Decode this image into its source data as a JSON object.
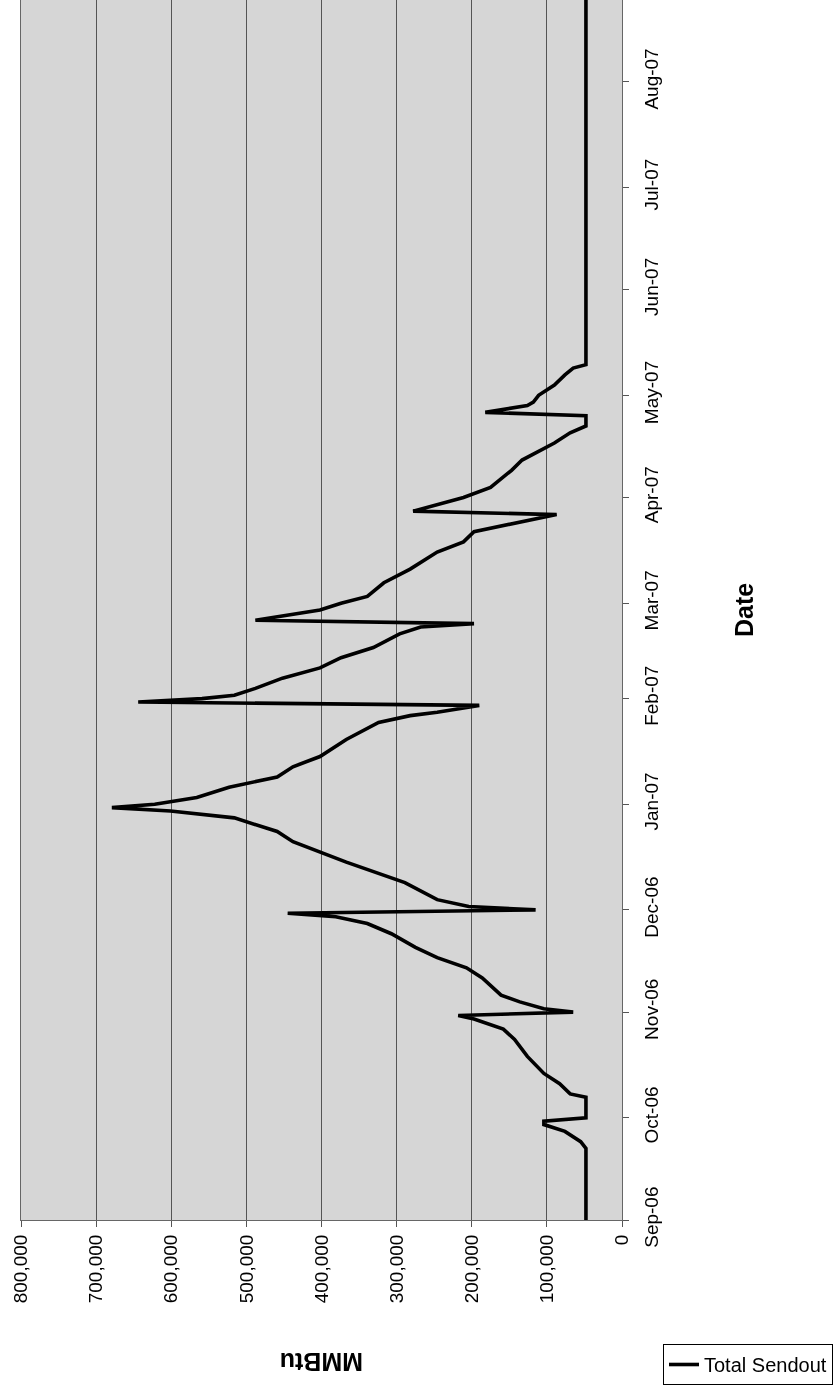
{
  "chart_data": {
    "type": "line",
    "orientation": "horizontal",
    "xlabel": "MMBtu",
    "ylabel": "Date",
    "legend": "bottom right",
    "grid": "x",
    "marker": "none",
    "line_style": "solid",
    "ylim": [
      "2006-09-01",
      "2007-08-25"
    ],
    "yticks": [
      {
        "value": "2006-09-01",
        "label": "Sep-06"
      },
      {
        "value": "2006-10-01",
        "label": "Oct-06"
      },
      {
        "value": "2006-11-01",
        "label": "Nov-06"
      },
      {
        "value": "2006-12-01",
        "label": "Dec-06"
      },
      {
        "value": "2007-01-01",
        "label": "Jan-07"
      },
      {
        "value": "2007-02-01",
        "label": "Feb-07"
      },
      {
        "value": "2007-03-01",
        "label": "Mar-07"
      },
      {
        "value": "2007-04-01",
        "label": "Apr-07"
      },
      {
        "value": "2007-05-01",
        "label": "May-07"
      },
      {
        "value": "2007-06-01",
        "label": "Jun-07"
      },
      {
        "value": "2007-07-01",
        "label": "Jul-07"
      },
      {
        "value": "2007-08-01",
        "label": "Aug-07"
      }
    ],
    "xlim": [
      800000,
      0
    ],
    "xticks": [
      0,
      {
        "value": 100000,
        "label": "100,000"
      },
      {
        "value": 200000,
        "label": "200,000"
      },
      {
        "value": 300000,
        "label": "300,000"
      },
      {
        "value": 400000,
        "label": "400,000"
      },
      {
        "value": 500000,
        "label": "500,000"
      },
      {
        "value": 600000,
        "label": "600,000"
      },
      {
        "value": 700000,
        "label": "700,000"
      },
      {
        "value": 800000,
        "label": "800,000"
      }
    ],
    "x": [
      "2006-09-01",
      "2006-09-22",
      "2006-09-24",
      "2006-09-27",
      "2006-09-29",
      "2006-09-30",
      "2006-10-01",
      "2006-10-07",
      "2006-10-08",
      "2006-10-11",
      "2006-10-14",
      "2006-10-19",
      "2006-10-24",
      "2006-10-27",
      "2006-10-30",
      "2006-10-31",
      "2006-11-01",
      "2006-11-02",
      "2006-11-04",
      "2006-11-06",
      "2006-11-11",
      "2006-11-14",
      "2006-11-17",
      "2006-11-20",
      "2006-11-24",
      "2006-11-27",
      "2006-11-29",
      "2006-11-30",
      "2006-12-01",
      "2006-12-02",
      "2006-12-04",
      "2006-12-09",
      "2006-12-15",
      "2006-12-21",
      "2006-12-24",
      "2006-12-28",
      "2006-12-30",
      "2006-12-31",
      "2007-01-01",
      "2007-01-03",
      "2007-01-06",
      "2007-01-09",
      "2007-01-12",
      "2007-01-15",
      "2007-01-20",
      "2007-01-25",
      "2007-01-27",
      "2007-01-28",
      "2007-01-30",
      "2007-01-31",
      "2007-02-01",
      "2007-02-02",
      "2007-02-04",
      "2007-02-07",
      "2007-02-10",
      "2007-02-13",
      "2007-02-16",
      "2007-02-20",
      "2007-02-22",
      "2007-02-23",
      "2007-02-24",
      "2007-02-27",
      "2007-03-01",
      "2007-03-03",
      "2007-03-07",
      "2007-03-11",
      "2007-03-16",
      "2007-03-19",
      "2007-03-22",
      "2007-03-27",
      "2007-03-28",
      "2007-04-01",
      "2007-04-04",
      "2007-04-09",
      "2007-04-12",
      "2007-04-17",
      "2007-04-20",
      "2007-04-22",
      "2007-04-25",
      "2007-04-26",
      "2007-04-28",
      "2007-04-29",
      "2007-05-01",
      "2007-05-04",
      "2007-05-07",
      "2007-05-09",
      "2007-05-10",
      "2007-08-25"
    ],
    "series": [
      {
        "name": "Total Sendout",
        "color": "#000000",
        "values": [
          48000,
          48000,
          55000,
          76000,
          104000,
          104000,
          48000,
          48000,
          69000,
          83000,
          104000,
          126000,
          143000,
          158000,
          197000,
          218000,
          65000,
          104000,
          136000,
          161000,
          186000,
          207000,
          246000,
          275000,
          307000,
          339000,
          381000,
          445000,
          115000,
          204000,
          246000,
          289000,
          367000,
          438000,
          459000,
          516000,
          601000,
          679000,
          622000,
          566000,
          523000,
          459000,
          438000,
          402000,
          367000,
          324000,
          282000,
          246000,
          190000,
          644000,
          559000,
          516000,
          488000,
          452000,
          402000,
          374000,
          331000,
          296000,
          268000,
          197000,
          488000,
          402000,
          374000,
          339000,
          317000,
          282000,
          246000,
          211000,
          197000,
          87000,
          278000,
          211000,
          175000,
          147000,
          133000,
          90000,
          69000,
          48000,
          48000,
          182000,
          126000,
          118000,
          111000,
          90000,
          76000,
          65000,
          48000,
          48000
        ]
      }
    ]
  }
}
